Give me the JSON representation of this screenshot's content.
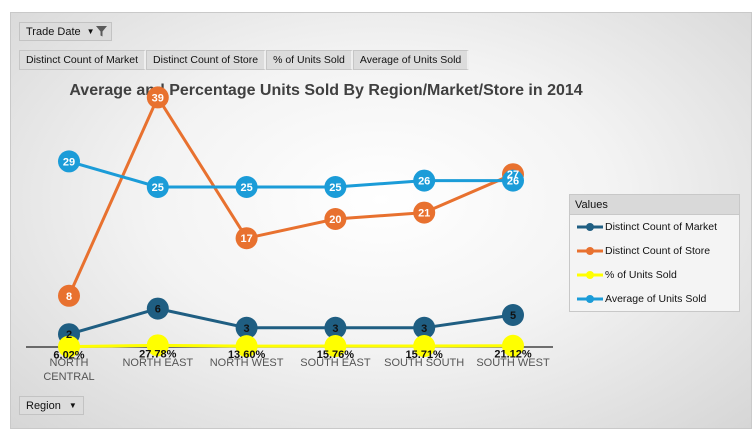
{
  "filter": {
    "label": "Trade Date"
  },
  "value_buttons": [
    "Distinct Count of Market",
    "Distinct Count of Store",
    "% of Units Sold",
    "Average of Units Sold"
  ],
  "axis_button": {
    "label": "Region"
  },
  "legend": {
    "header": "Values",
    "items": [
      "Distinct Count of Market",
      "Distinct Count of Store",
      "% of Units Sold",
      "Average of Units Sold"
    ]
  },
  "chart_data": {
    "type": "line",
    "title": "Average and Percentage Units Sold By Region/Market/Store  in 2014",
    "categories": [
      "NORTH CENTRAL",
      "NORTH EAST",
      "NORTH WEST",
      "SOUTH EAST",
      "SOUTH SOUTH",
      "SOUTH WEST"
    ],
    "category_lines": [
      [
        "NORTH",
        "CENTRAL"
      ],
      [
        "NORTH EAST"
      ],
      [
        "NORTH WEST"
      ],
      [
        "SOUTH EAST"
      ],
      [
        "SOUTH SOUTH"
      ],
      [
        "SOUTH WEST"
      ]
    ],
    "series": [
      {
        "name": "Distinct Count of Market",
        "values": [
          2,
          6,
          3,
          3,
          3,
          5
        ],
        "labels": [
          "2",
          "6",
          "3",
          "3",
          "3",
          "5"
        ],
        "color": "#1f5e82"
      },
      {
        "name": "Distinct Count of Store",
        "values": [
          8,
          39,
          17,
          20,
          21,
          27
        ],
        "labels": [
          "8",
          "39",
          "17",
          "20",
          "21",
          "27"
        ],
        "color": "#e8712f"
      },
      {
        "name": "% of Units Sold",
        "values": [
          0.0602,
          0.2778,
          0.136,
          0.1576,
          0.1571,
          0.2112
        ],
        "labels": [
          "6.02%",
          "27.78%",
          "13.60%",
          "15.76%",
          "15.71%",
          "21.12%"
        ],
        "color": "#ffff00"
      },
      {
        "name": "Average of Units Sold",
        "values": [
          29,
          25,
          25,
          25,
          26,
          26
        ],
        "labels": [
          "29",
          "25",
          "25",
          "25",
          "26",
          "26"
        ],
        "color": "#1b9cd8"
      }
    ],
    "ylim": [
      0,
      45
    ],
    "grid": false,
    "legend_position": "right"
  }
}
